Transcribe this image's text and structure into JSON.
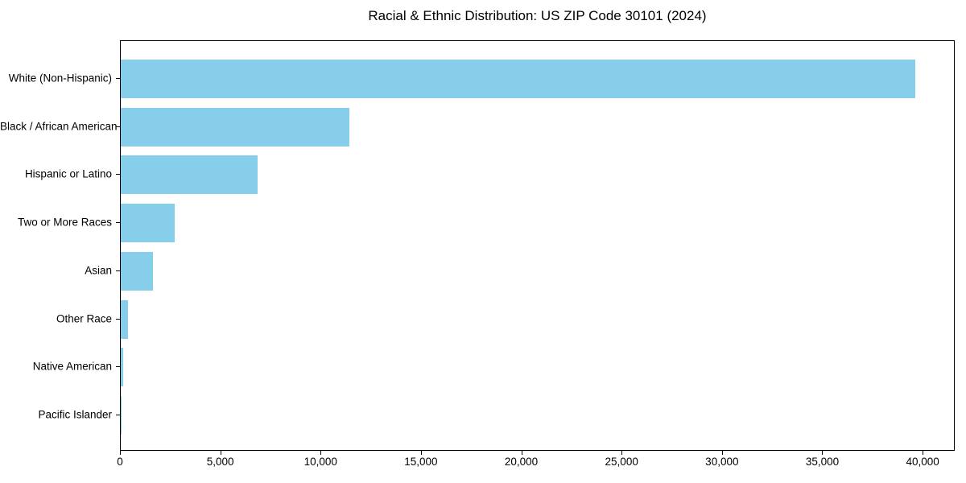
{
  "chart_data": {
    "type": "bar",
    "orientation": "horizontal",
    "title": "Racial & Ethnic Distribution: US ZIP Code 30101 (2024)",
    "categories": [
      "White (Non-Hispanic)",
      "Black / African American",
      "Hispanic or Latino",
      "Two or More Races",
      "Asian",
      "Other Race",
      "Native American",
      "Pacific Islander"
    ],
    "values": [
      39600,
      11400,
      6800,
      2700,
      1600,
      360,
      120,
      20
    ],
    "xlabel": "",
    "ylabel": "",
    "xlim": [
      0,
      41600
    ],
    "x_ticks": [
      0,
      5000,
      10000,
      15000,
      20000,
      25000,
      30000,
      35000,
      40000
    ],
    "x_tick_labels": [
      "0",
      "5,000",
      "10,000",
      "15,000",
      "20,000",
      "25,000",
      "30,000",
      "35,000",
      "40,000"
    ],
    "bar_color": "#87CEEB",
    "spine_color": "#000000",
    "text_color": "#000000",
    "background_color": "#ffffff",
    "grid": false,
    "legend_position": "none"
  }
}
